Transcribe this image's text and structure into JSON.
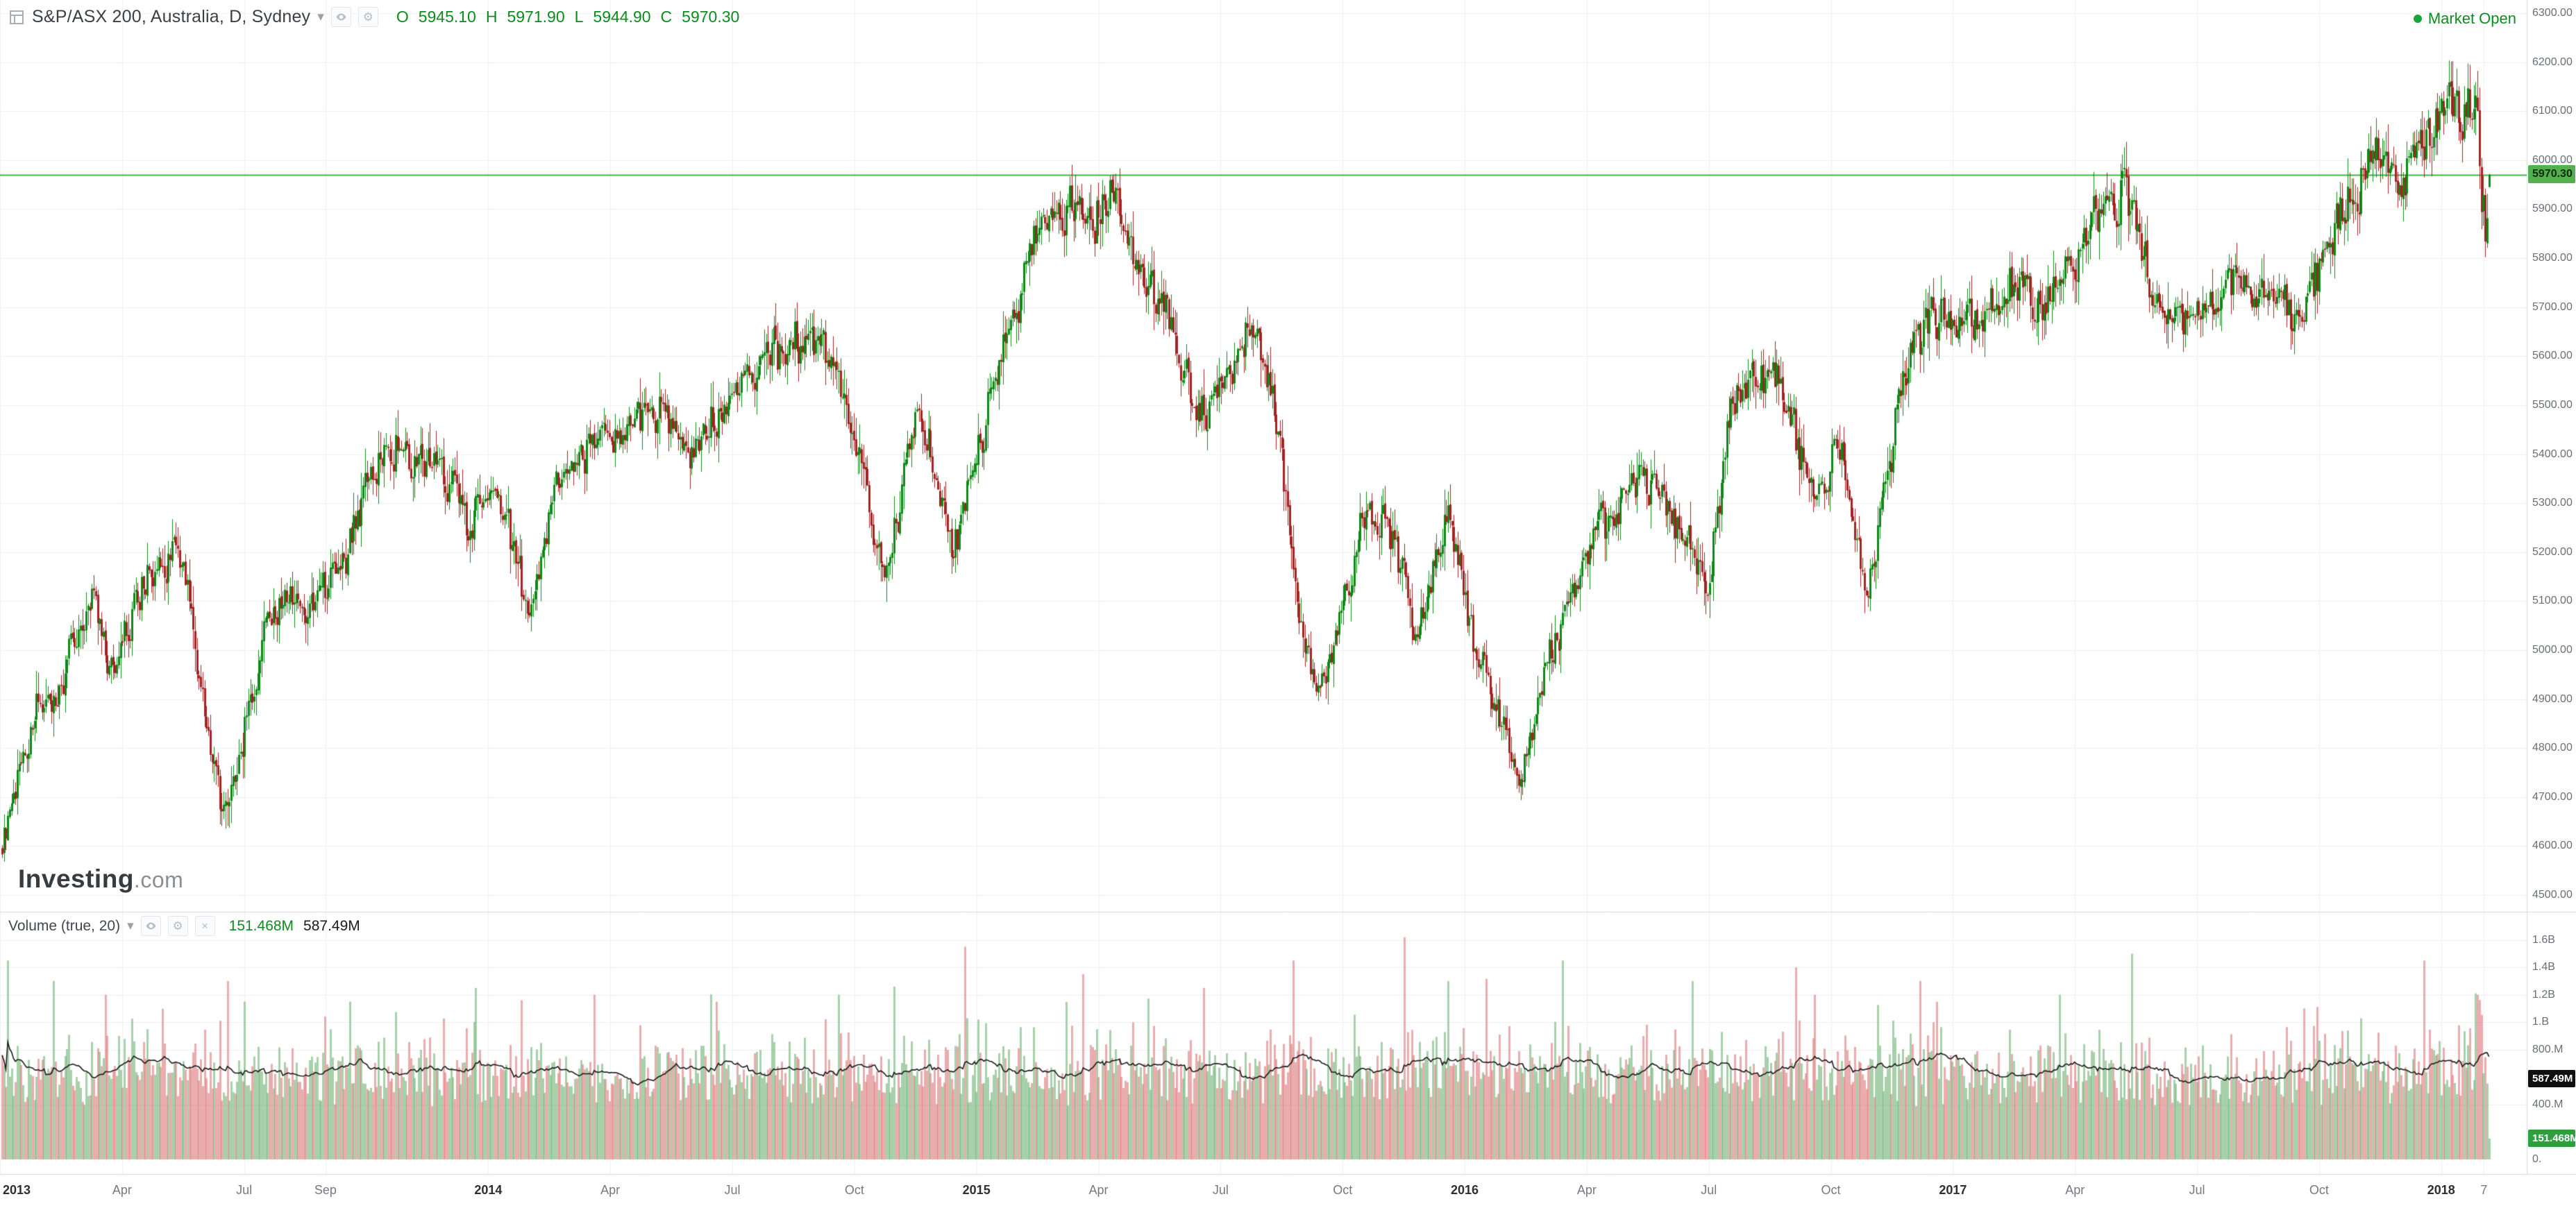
{
  "header": {
    "symbol_title": "S&P/ASX 200, Australia, D, Sydney",
    "ohlc": {
      "open_label": "O",
      "open": "5945.10",
      "high_label": "H",
      "high": "5971.90",
      "low_label": "L",
      "low": "5944.90",
      "close_label": "C",
      "close": "5970.30"
    },
    "market_status": {
      "label": "Market Open"
    }
  },
  "icons": {
    "caret": "▾",
    "gear": "⚙",
    "close": "×",
    "menu": "≡"
  },
  "watermark": {
    "brand": "Investing",
    "suffix": ".com"
  },
  "price_axis": {
    "ticks": [
      "6300.00",
      "6200.00",
      "6100.00",
      "6000.00",
      "5900.00",
      "5800.00",
      "5700.00",
      "5600.00",
      "5500.00",
      "5400.00",
      "5300.00",
      "5200.00",
      "5100.00",
      "5000.00",
      "4900.00",
      "4800.00",
      "4700.00",
      "4600.00",
      "4500.00"
    ],
    "last_price_badge": "5970.30"
  },
  "volume_pane": {
    "legend": "Volume (true, 20)",
    "current_value": "151.468M",
    "ma_value": "587.49M",
    "axis_ticks": [
      {
        "label": "1.6B",
        "value": 1600000000
      },
      {
        "label": "1.4B",
        "value": 1400000000
      },
      {
        "label": "1.2B",
        "value": 1200000000
      },
      {
        "label": "1.B",
        "value": 1000000000
      },
      {
        "label": "800.M",
        "value": 800000000
      },
      {
        "label": "400.M",
        "value": 400000000
      },
      {
        "label": "0.",
        "value": 0
      }
    ],
    "badges": {
      "ma": "587.49M",
      "current": "151.468M"
    }
  },
  "time_axis": {
    "ticks": [
      {
        "label": "2013",
        "m": 0,
        "year": true
      },
      {
        "label": "Apr",
        "m": 3
      },
      {
        "label": "Jul",
        "m": 6
      },
      {
        "label": "Sep",
        "m": 8
      },
      {
        "label": "2014",
        "m": 12,
        "year": true
      },
      {
        "label": "Apr",
        "m": 15
      },
      {
        "label": "Jul",
        "m": 18
      },
      {
        "label": "Oct",
        "m": 21
      },
      {
        "label": "2015",
        "m": 24,
        "year": true
      },
      {
        "label": "Apr",
        "m": 27
      },
      {
        "label": "Jul",
        "m": 30
      },
      {
        "label": "Oct",
        "m": 33
      },
      {
        "label": "2016",
        "m": 36,
        "year": true
      },
      {
        "label": "Apr",
        "m": 39
      },
      {
        "label": "Jul",
        "m": 42
      },
      {
        "label": "Oct",
        "m": 45
      },
      {
        "label": "2017",
        "m": 48,
        "year": true
      },
      {
        "label": "Apr",
        "m": 51
      },
      {
        "label": "Jul",
        "m": 54
      },
      {
        "label": "Oct",
        "m": 57
      },
      {
        "label": "2018",
        "m": 60,
        "year": true
      },
      {
        "label": "7",
        "m": 61.05
      }
    ]
  },
  "colors": {
    "up": "#0e8816",
    "down": "#a42222",
    "vol_up": "rgba(96,169,102,0.55)",
    "vol_down": "rgba(216,106,106,0.55)",
    "ma_line": "#1a1a1a",
    "grid": "#f0f0f0",
    "separator": "#d8dade",
    "last_price_line": "#3db53d",
    "last_price_badge_bg": "#54b04c",
    "last_price_badge_text": "#0b2e0b",
    "accent_green": "#0c8b1f",
    "status_green": "#18a53a",
    "ma_badge_bg": "#101010",
    "ma_badge_text": "#ffffff",
    "current_vol_badge_bg": "#2f9e3f",
    "current_vol_badge_text": "#ffffff"
  },
  "chart_data": {
    "type": "candlestick",
    "title": "S&P/ASX 200, Australia, D, Sydney",
    "symbol": "S&P/ASX 200",
    "interval": "D",
    "timezone": "Sydney",
    "x_range": {
      "start": "2013-01",
      "end": "2018-02-07"
    },
    "y_range": [
      4500,
      6300
    ],
    "y_step": 100,
    "grid": true,
    "last": {
      "open": 5945.1,
      "high": 5971.9,
      "low": 5944.9,
      "close": 5970.3
    },
    "bars_per_month": 21.3,
    "seed": 20180207,
    "price_path_anchors": [
      [
        0,
        4580
      ],
      [
        0.4,
        4720
      ],
      [
        0.9,
        4890
      ],
      [
        1.4,
        4920
      ],
      [
        1.8,
        5030
      ],
      [
        2.3,
        5120
      ],
      [
        2.7,
        4940
      ],
      [
        3.3,
        5100
      ],
      [
        4.3,
        5230
      ],
      [
        4.8,
        5000
      ],
      [
        5.4,
        4680
      ],
      [
        5.9,
        4810
      ],
      [
        6.5,
        5050
      ],
      [
        7.2,
        5120
      ],
      [
        7.7,
        5070
      ],
      [
        8.5,
        5210
      ],
      [
        9.6,
        5430
      ],
      [
        10.3,
        5360
      ],
      [
        10.8,
        5390
      ],
      [
        11.5,
        5240
      ],
      [
        12.2,
        5330
      ],
      [
        13.0,
        5060
      ],
      [
        13.6,
        5310
      ],
      [
        14.5,
        5430
      ],
      [
        15.3,
        5440
      ],
      [
        16.2,
        5500
      ],
      [
        17.0,
        5420
      ],
      [
        18.3,
        5550
      ],
      [
        19.6,
        5640
      ],
      [
        20.5,
        5580
      ],
      [
        21.2,
        5330
      ],
      [
        21.7,
        5150
      ],
      [
        22.6,
        5520
      ],
      [
        23.4,
        5180
      ],
      [
        24.0,
        5420
      ],
      [
        24.4,
        5540
      ],
      [
        25.5,
        5870
      ],
      [
        26.3,
        5920
      ],
      [
        26.8,
        5860
      ],
      [
        27.3,
        5975
      ],
      [
        27.9,
        5790
      ],
      [
        28.6,
        5680
      ],
      [
        29.4,
        5480
      ],
      [
        30.3,
        5560
      ],
      [
        30.8,
        5690
      ],
      [
        31.5,
        5380
      ],
      [
        31.9,
        5050
      ],
      [
        32.4,
        4920
      ],
      [
        32.8,
        5020
      ],
      [
        33.5,
        5290
      ],
      [
        34.2,
        5230
      ],
      [
        34.8,
        5020
      ],
      [
        35.6,
        5280
      ],
      [
        36.2,
        5010
      ],
      [
        36.7,
        4890
      ],
      [
        37.3,
        4720
      ],
      [
        38.1,
        5000
      ],
      [
        39.2,
        5230
      ],
      [
        40.3,
        5370
      ],
      [
        40.9,
        5310
      ],
      [
        41.6,
        5180
      ],
      [
        41.9,
        5080
      ],
      [
        42.5,
        5500
      ],
      [
        43.6,
        5570
      ],
      [
        44.6,
        5300
      ],
      [
        45.2,
        5440
      ],
      [
        45.9,
        5100
      ],
      [
        46.8,
        5600
      ],
      [
        47.6,
        5690
      ],
      [
        48.4,
        5660
      ],
      [
        49.5,
        5760
      ],
      [
        50.3,
        5720
      ],
      [
        51.4,
        5870
      ],
      [
        52.2,
        5950
      ],
      [
        52.9,
        5720
      ],
      [
        53.7,
        5670
      ],
      [
        54.5,
        5720
      ],
      [
        55.0,
        5760
      ],
      [
        55.8,
        5710
      ],
      [
        56.6,
        5680
      ],
      [
        57.4,
        5880
      ],
      [
        58.4,
        6020
      ],
      [
        58.9,
        5960
      ],
      [
        59.6,
        6060
      ],
      [
        60.5,
        6110
      ],
      [
        60.8,
        6135
      ],
      [
        61.0,
        5900
      ],
      [
        61.08,
        5840
      ],
      [
        61.15,
        5930
      ],
      [
        61.2,
        5970.3
      ]
    ],
    "volume": {
      "current": 151468000,
      "ma20_current": 587490000,
      "max_scale": 1750000000,
      "base_range": [
        380000000,
        700000000
      ],
      "spikes": [
        [
          0.2,
          1450000000
        ],
        [
          1.3,
          1300000000
        ],
        [
          2.6,
          1200000000
        ],
        [
          5.6,
          1300000000
        ],
        [
          8.6,
          1150000000
        ],
        [
          11.7,
          1250000000
        ],
        [
          14.6,
          1200000000
        ],
        [
          17.6,
          1150000000
        ],
        [
          20.6,
          1200000000
        ],
        [
          23.7,
          1550000000
        ],
        [
          26.6,
          1350000000
        ],
        [
          29.6,
          1250000000
        ],
        [
          31.8,
          1450000000
        ],
        [
          34.5,
          1620000000
        ],
        [
          35.6,
          1300000000
        ],
        [
          38.4,
          1450000000
        ],
        [
          41.6,
          1300000000
        ],
        [
          44.6,
          1200000000
        ],
        [
          47.6,
          1150000000
        ],
        [
          50.6,
          1200000000
        ],
        [
          52.4,
          1500000000
        ],
        [
          56.6,
          1100000000
        ],
        [
          59.6,
          1450000000
        ],
        [
          60.9,
          1200000000
        ]
      ]
    }
  }
}
